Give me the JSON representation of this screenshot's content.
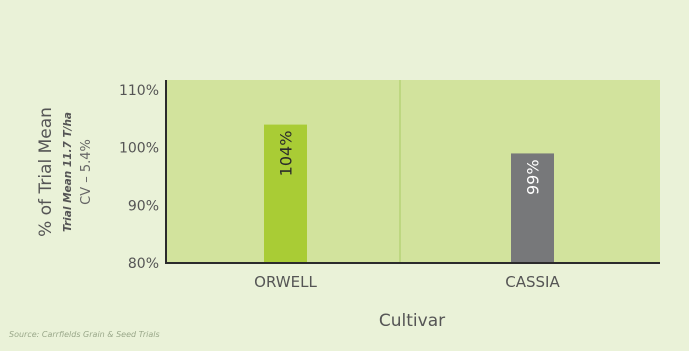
{
  "chart_data": {
    "type": "bar",
    "categories": [
      "ORWELL",
      "CASSIA"
    ],
    "values": [
      104,
      99
    ],
    "value_labels": [
      "104%",
      "99%"
    ],
    "xlabel": "Cultivar",
    "ylabel": "% of Trial Mean",
    "ylabel_sub1": "Trial Mean 11.7 T/ha",
    "ylabel_sub2": "CV – 5.4%",
    "yticks": [
      "80%",
      "90%",
      "100%",
      "110%"
    ],
    "ylim": [
      80,
      110
    ],
    "bar_colors": [
      "#a9cc35",
      "#77787a"
    ],
    "plot_background": "#d2e39d",
    "grid": false
  },
  "source": "Source: Carrfields Grain & Seed Trials"
}
